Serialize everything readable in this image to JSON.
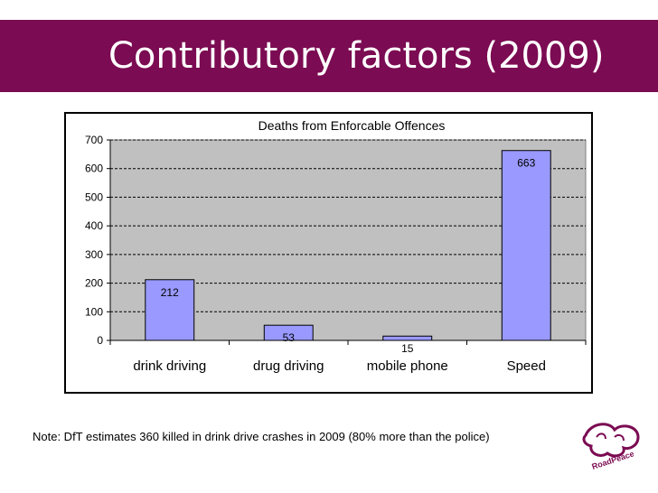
{
  "slide": {
    "title": "Contributory factors (2009)",
    "note": "Note: DfT estimates 360 killed in drink drive crashes in 2009 (80% more than the police)",
    "logo_text": "RoadPeace"
  },
  "colors": {
    "title_bar": "#7b0b52",
    "plot_area": "#c0c0c0",
    "bar_fill": "#9999ff"
  },
  "chart_data": {
    "type": "bar",
    "title": "Deaths from Enforcable Offences",
    "categories": [
      "drink driving",
      "drug driving",
      "mobile phone",
      "Speed"
    ],
    "values": [
      212,
      53,
      15,
      663
    ],
    "xlabel": "",
    "ylabel": "",
    "ylim": [
      0,
      700
    ],
    "yticks": [
      0,
      100,
      200,
      300,
      400,
      500,
      600,
      700
    ],
    "grid": true,
    "legend": "none"
  }
}
